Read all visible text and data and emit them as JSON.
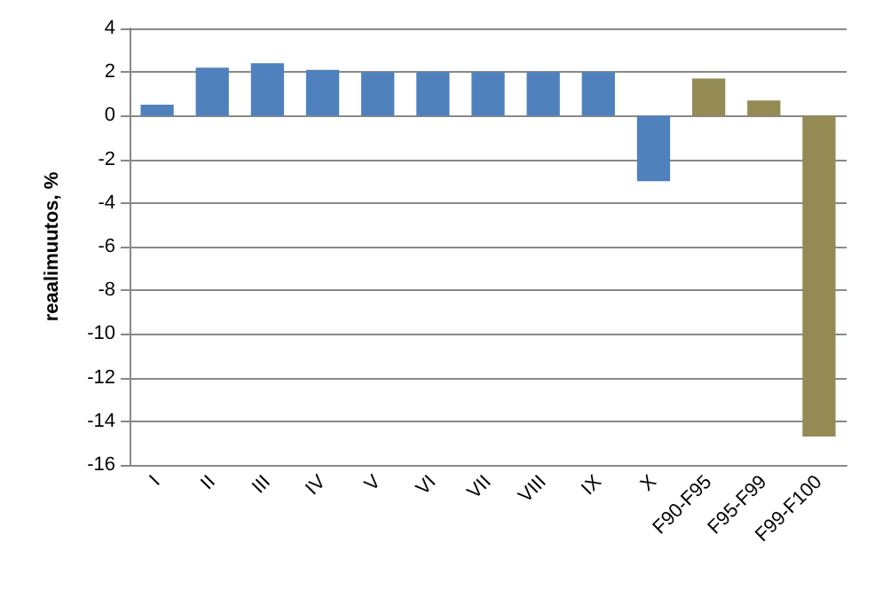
{
  "chart_data": {
    "type": "bar",
    "ylabel": "reaalimuutos, %",
    "categories": [
      "I",
      "II",
      "III",
      "IV",
      "V",
      "VI",
      "VII",
      "VIII",
      "IX",
      "X",
      "F90-F95",
      "F95-F99",
      "F99-F100"
    ],
    "values": [
      0.5,
      2.2,
      2.4,
      2.1,
      2.0,
      2.0,
      2.0,
      2.0,
      2.0,
      -3.0,
      1.7,
      0.7,
      -14.7
    ],
    "colors": [
      "#4f81bd",
      "#4f81bd",
      "#4f81bd",
      "#4f81bd",
      "#4f81bd",
      "#4f81bd",
      "#4f81bd",
      "#4f81bd",
      "#4f81bd",
      "#4f81bd",
      "#948a54",
      "#948a54",
      "#948a54"
    ],
    "ylim": [
      -16,
      4
    ],
    "yticks": [
      -16,
      -14,
      -12,
      -10,
      -8,
      -6,
      -4,
      -2,
      0,
      2,
      4
    ],
    "grid": "y"
  }
}
